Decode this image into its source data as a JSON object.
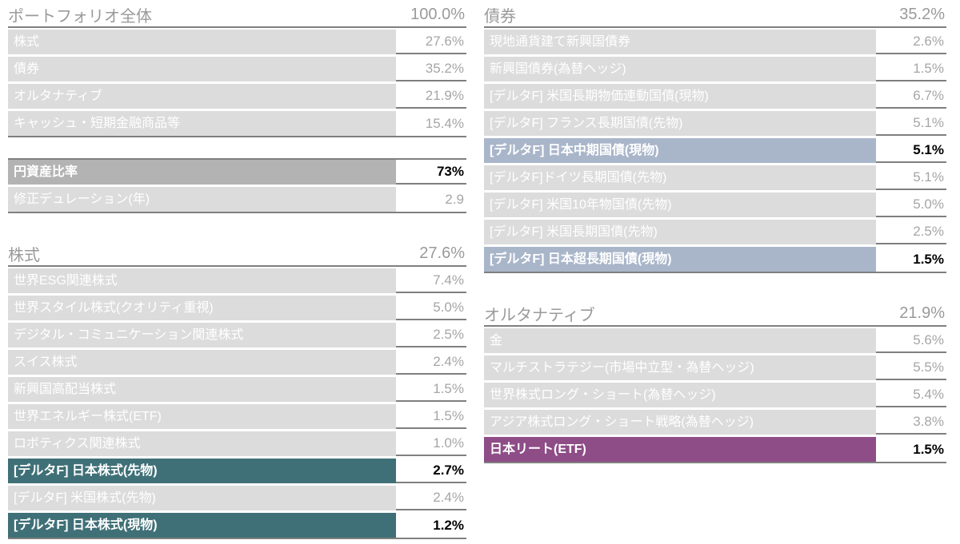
{
  "colors": {
    "row_background": "#dcdcdc",
    "row_label_text": "#ffffff",
    "value_text": "#a6a6a6",
    "header_text": "#9a9a9a",
    "border": "#7f7f7f",
    "highlight_gray": "#b3b3b3",
    "highlight_teal": "#3f7077",
    "highlight_blue": "#a9b6ca",
    "highlight_purple": "#8e4d87",
    "highlight_value_text": "#000000"
  },
  "chart_data": {
    "type": "table",
    "tables": [
      {
        "id": "portfolio_total",
        "title": "ポートフォリオ全体",
        "total": "100.0%",
        "rows": [
          {
            "label": "株式",
            "value": "27.6%"
          },
          {
            "label": "債券",
            "value": "35.2%"
          },
          {
            "label": "オルタナティブ",
            "value": "21.9%"
          },
          {
            "label": "キャッシュ・短期金融商品等",
            "value": "15.4%"
          }
        ]
      },
      {
        "id": "yen_metrics",
        "title": "",
        "total": "",
        "rows": [
          {
            "label": "円資産比率",
            "value": "73%",
            "highlight": "gray"
          },
          {
            "label": "修正デュレーション(年)",
            "value": "2.9"
          }
        ]
      },
      {
        "id": "equity",
        "title": "株式",
        "total": "27.6%",
        "rows": [
          {
            "label": "世界ESG関連株式",
            "value": "7.4%"
          },
          {
            "label": "世界スタイル株式(クオリティ重視)",
            "value": "5.0%"
          },
          {
            "label": "デジタル・コミュニケーション関連株式",
            "value": "2.5%"
          },
          {
            "label": "スイス株式",
            "value": "2.4%"
          },
          {
            "label": "新興国高配当株式",
            "value": "1.5%"
          },
          {
            "label": "世界エネルギー株式(ETF)",
            "value": "1.5%"
          },
          {
            "label": "ロボティクス関連株式",
            "value": "1.0%"
          },
          {
            "label": "[デルタF] 日本株式(先物)",
            "value": "2.7%",
            "highlight": "teal"
          },
          {
            "label": "[デルタF] 米国株式(先物)",
            "value": "2.4%"
          },
          {
            "label": "[デルタF] 日本株式(現物)",
            "value": "1.2%",
            "highlight": "teal"
          }
        ]
      },
      {
        "id": "bonds",
        "title": "債券",
        "total": "35.2%",
        "rows": [
          {
            "label": "現地通貨建て新興国債券",
            "value": "2.6%"
          },
          {
            "label": "新興国債券(為替ヘッジ)",
            "value": "1.5%"
          },
          {
            "label": "[デルタF] 米国長期物価連動国債(現物)",
            "value": "6.7%"
          },
          {
            "label": "[デルタF] フランス長期国債(先物)",
            "value": "5.1%"
          },
          {
            "label": "[デルタF] 日本中期国債(現物)",
            "value": "5.1%",
            "highlight": "blue"
          },
          {
            "label": "[デルタF]ドイツ長期国債(先物)",
            "value": "5.1%"
          },
          {
            "label": "[デルタF] 米国10年物国債(先物)",
            "value": "5.0%"
          },
          {
            "label": "[デルタF] 米国長期国債(先物)",
            "value": "2.5%"
          },
          {
            "label": "[デルタF] 日本超長期国債(現物)",
            "value": "1.5%",
            "highlight": "blue"
          }
        ]
      },
      {
        "id": "alternatives",
        "title": "オルタナティブ",
        "total": "21.9%",
        "rows": [
          {
            "label": "金",
            "value": "5.6%"
          },
          {
            "label": "マルチストラテジー(市場中立型・為替ヘッジ)",
            "value": "5.5%"
          },
          {
            "label": "世界株式ロング・ショート(為替ヘッジ)",
            "value": "5.4%"
          },
          {
            "label": "アジア株式ロング・ショート戦略(為替ヘッジ)",
            "value": "3.8%"
          },
          {
            "label": "日本リート(ETF)",
            "value": "1.5%",
            "highlight": "purple"
          }
        ]
      }
    ]
  }
}
